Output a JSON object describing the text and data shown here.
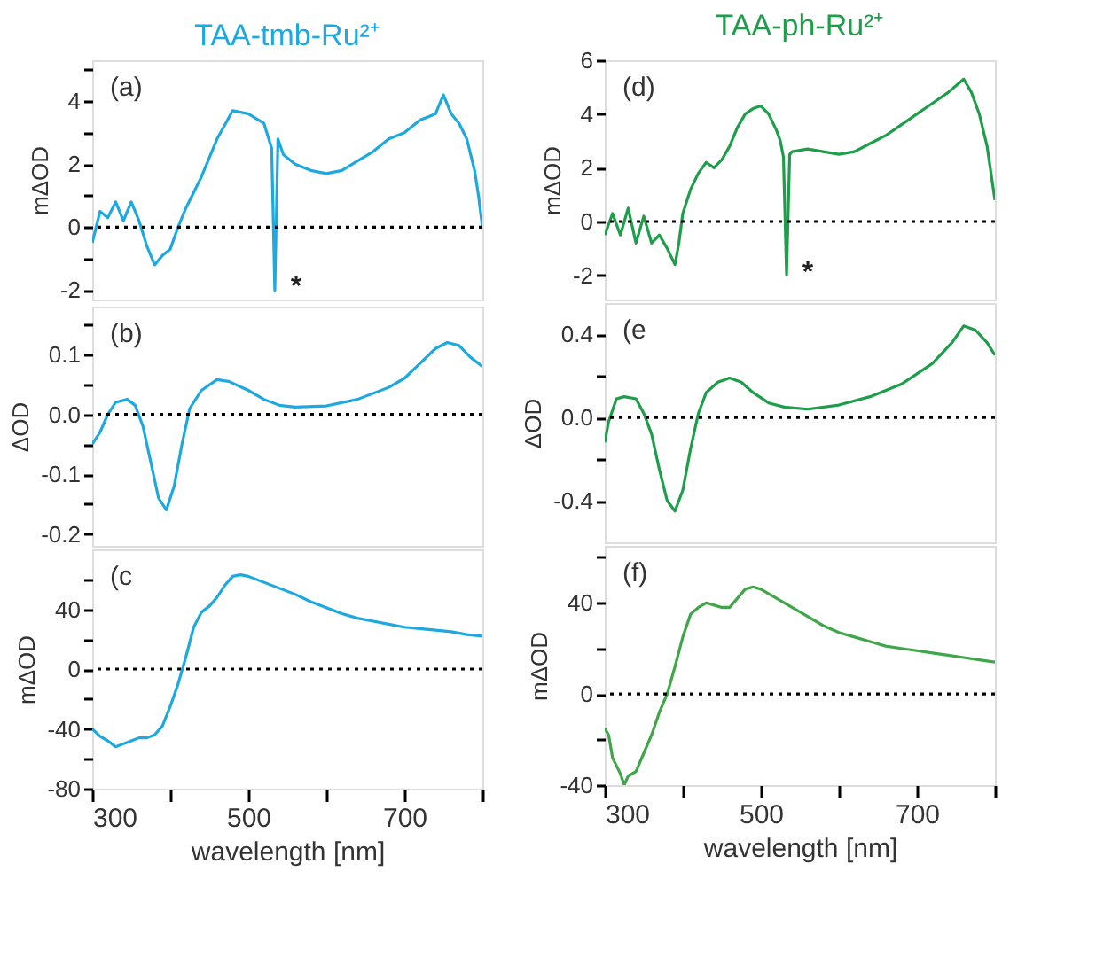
{
  "chart_data": [
    {
      "type": "line",
      "title": "TAA-tmb-Ru²⁺",
      "ylabel": "mΔOD",
      "xlim": [
        300,
        800
      ],
      "ylim": [
        -2.3,
        5.3
      ],
      "yticks": [
        -2,
        {
          "value": -1,
          "label": null
        },
        0,
        {
          "value": 1,
          "label": null
        },
        2,
        {
          "value": 3,
          "label": null
        },
        4,
        {
          "value": 5,
          "label": null
        }
      ],
      "tick_labels": "y",
      "grid": false,
      "x": [
        300,
        310,
        320,
        330,
        340,
        350,
        360,
        370,
        380,
        390,
        400,
        410,
        420,
        440,
        460,
        480,
        500,
        520,
        530,
        534,
        538,
        545,
        560,
        580,
        600,
        620,
        640,
        660,
        680,
        700,
        720,
        740,
        750,
        760,
        770,
        780,
        790,
        795,
        800
      ],
      "series": [
        {
          "color": "#1ea8e0",
          "values": [
            -0.5,
            0.5,
            0.3,
            0.8,
            0.2,
            0.8,
            0.2,
            -0.6,
            -1.2,
            -0.9,
            -0.7,
            0,
            0.6,
            1.6,
            2.8,
            3.7,
            3.6,
            3.3,
            2.5,
            -2.0,
            2.8,
            2.3,
            2.0,
            1.8,
            1.7,
            1.8,
            2.1,
            2.4,
            2.8,
            3.0,
            3.4,
            3.6,
            4.2,
            3.6,
            3.3,
            2.8,
            1.8,
            1.0,
            0
          ]
        }
      ],
      "ref_lines": [
        {
          "axis": "y",
          "value": 0,
          "line_style": "dotted",
          "color": "#000000"
        }
      ],
      "annotations": [
        "(a)",
        {
          "text": "*",
          "x": 534,
          "y": -2
        }
      ]
    },
    {
      "type": "line",
      "ylabel": "ΔOD",
      "xlim": [
        300,
        800
      ],
      "ylim": [
        -0.22,
        0.18
      ],
      "yticks": [
        -0.2,
        {
          "value": -0.15,
          "label": null
        },
        -0.1,
        {
          "value": -0.05,
          "label": null
        },
        {
          "value": 0,
          "label": "0.0"
        },
        {
          "value": 0.05,
          "label": null
        },
        0.1,
        {
          "value": 0.15,
          "label": null
        }
      ],
      "tick_labels": "y",
      "grid": false,
      "x": [
        300,
        310,
        320,
        330,
        345,
        355,
        365,
        375,
        385,
        395,
        405,
        415,
        425,
        440,
        460,
        475,
        500,
        520,
        540,
        560,
        600,
        640,
        680,
        700,
        720,
        740,
        755,
        770,
        785,
        800
      ],
      "series": [
        {
          "color": "#1ea8e0",
          "values": [
            -0.05,
            -0.03,
            0.0,
            0.02,
            0.025,
            0.015,
            -0.02,
            -0.08,
            -0.14,
            -0.16,
            -0.12,
            -0.05,
            0.01,
            0.04,
            0.058,
            0.055,
            0.04,
            0.025,
            0.015,
            0.012,
            0.014,
            0.025,
            0.045,
            0.06,
            0.085,
            0.11,
            0.12,
            0.115,
            0.095,
            0.08
          ]
        }
      ],
      "ref_lines": [
        {
          "axis": "y",
          "value": 0,
          "line_style": "dotted",
          "color": "#000000"
        }
      ],
      "annotations": [
        "(b)"
      ]
    },
    {
      "type": "line",
      "ylabel": "mΔOD",
      "xlabel": "wavelength [nm]",
      "xlim": [
        300,
        800
      ],
      "xticks": [
        300,
        {
          "value": 400,
          "label": null
        },
        500,
        {
          "value": 600,
          "label": null
        },
        700,
        {
          "value": 800,
          "label": null
        }
      ],
      "ylim": [
        -80,
        80
      ],
      "yticks": [
        -80,
        {
          "value": -60,
          "label": null
        },
        -40,
        {
          "value": -20,
          "label": null
        },
        0,
        {
          "value": 20,
          "label": null
        },
        40,
        {
          "value": 60,
          "label": null
        }
      ],
      "grid": false,
      "x": [
        300,
        310,
        320,
        330,
        340,
        350,
        360,
        370,
        380,
        390,
        400,
        410,
        420,
        430,
        440,
        450,
        460,
        470,
        480,
        490,
        500,
        520,
        540,
        560,
        580,
        600,
        620,
        640,
        660,
        680,
        700,
        720,
        740,
        760,
        780,
        800
      ],
      "series": [
        {
          "color": "#1ea8e0",
          "values": [
            -40,
            -45,
            -48,
            -52,
            -50,
            -48,
            -46,
            -46,
            -44,
            -38,
            -25,
            -10,
            8,
            28,
            38,
            42,
            48,
            56,
            62,
            63,
            62,
            58,
            54,
            50,
            45,
            41,
            37,
            34,
            32,
            30,
            28,
            27,
            26,
            25,
            23,
            22
          ]
        }
      ],
      "ref_lines": [
        {
          "axis": "y",
          "value": 0,
          "line_style": "dotted",
          "color": "#000000"
        }
      ],
      "annotations": [
        "(c"
      ]
    },
    {
      "type": "line",
      "title": "TAA-ph-Ru²⁺",
      "ylabel": "mΔOD",
      "xlim": [
        300,
        800
      ],
      "ylim": [
        -2.9,
        6
      ],
      "yticks": [
        -2,
        0,
        2,
        4,
        6
      ],
      "tick_labels": "y",
      "grid": false,
      "x": [
        300,
        310,
        320,
        330,
        340,
        350,
        360,
        370,
        380,
        390,
        395,
        400,
        410,
        420,
        430,
        440,
        450,
        460,
        470,
        480,
        490,
        500,
        510,
        520,
        525,
        529,
        533,
        537,
        540,
        560,
        580,
        600,
        620,
        640,
        660,
        680,
        700,
        720,
        740,
        760,
        770,
        780,
        790,
        800
      ],
      "series": [
        {
          "color": "#1e9e4a",
          "values": [
            -0.5,
            0.3,
            -0.5,
            0.5,
            -0.8,
            0.2,
            -0.8,
            -0.5,
            -1.0,
            -1.6,
            -0.8,
            0.3,
            1.2,
            1.8,
            2.2,
            2.0,
            2.3,
            2.8,
            3.5,
            4.0,
            4.2,
            4.3,
            4.0,
            3.4,
            3.0,
            2.4,
            -2.0,
            2.5,
            2.6,
            2.7,
            2.6,
            2.5,
            2.6,
            2.9,
            3.2,
            3.6,
            4.0,
            4.4,
            4.8,
            5.3,
            4.8,
            4.0,
            2.8,
            0.8
          ]
        }
      ],
      "ref_lines": [
        {
          "axis": "y",
          "value": 0,
          "line_style": "dotted",
          "color": "#000000"
        }
      ],
      "annotations": [
        "(d)",
        {
          "text": "*",
          "x": 533,
          "y": -2
        }
      ]
    },
    {
      "type": "line",
      "ylabel": "ΔOD",
      "xlim": [
        300,
        800
      ],
      "ylim": [
        -0.6,
        0.55
      ],
      "yticks": [
        -0.4,
        {
          "value": -0.2,
          "label": null
        },
        {
          "value": 0,
          "label": "0.0"
        },
        {
          "value": 0.2,
          "label": null
        },
        0.4
      ],
      "tick_labels": "y",
      "grid": false,
      "x": [
        300,
        305,
        315,
        325,
        340,
        350,
        360,
        370,
        380,
        390,
        400,
        410,
        420,
        430,
        445,
        460,
        475,
        490,
        510,
        530,
        560,
        600,
        640,
        680,
        720,
        745,
        760,
        775,
        790,
        800
      ],
      "series": [
        {
          "color": "#1e9e4a",
          "values": [
            -0.12,
            -0.02,
            0.09,
            0.1,
            0.09,
            0.02,
            -0.08,
            -0.25,
            -0.4,
            -0.45,
            -0.35,
            -0.15,
            0.02,
            0.12,
            0.17,
            0.19,
            0.17,
            0.12,
            0.07,
            0.05,
            0.04,
            0.06,
            0.1,
            0.16,
            0.26,
            0.36,
            0.44,
            0.42,
            0.36,
            0.3
          ]
        }
      ],
      "ref_lines": [
        {
          "axis": "y",
          "value": 0,
          "line_style": "dotted",
          "color": "#000000"
        }
      ],
      "annotations": [
        "(e"
      ]
    },
    {
      "type": "line",
      "ylabel": "mΔOD",
      "xlabel": "wavelength [nm]",
      "xlim": [
        300,
        800
      ],
      "xticks": [
        300,
        {
          "value": 400,
          "label": null
        },
        500,
        {
          "value": 600,
          "label": null
        },
        700,
        {
          "value": 800,
          "label": null
        }
      ],
      "ylim": [
        -40,
        65
      ],
      "yticks": [
        -40,
        {
          "value": -20,
          "label": null
        },
        0,
        {
          "value": 20,
          "label": null
        },
        40,
        {
          "value": 60,
          "label": null
        }
      ],
      "grid": false,
      "x": [
        300,
        305,
        310,
        320,
        325,
        330,
        340,
        350,
        360,
        370,
        380,
        390,
        400,
        410,
        420,
        430,
        440,
        450,
        460,
        470,
        480,
        490,
        500,
        520,
        540,
        560,
        580,
        600,
        620,
        640,
        660,
        680,
        700,
        720,
        740,
        760,
        780,
        800
      ],
      "series": [
        {
          "color": "#3fa64a",
          "values": [
            -15,
            -18,
            -28,
            -35,
            -40,
            -36,
            -34,
            -26,
            -18,
            -8,
            0,
            12,
            25,
            35,
            38,
            40,
            39,
            38,
            38,
            42,
            46,
            47,
            46,
            42,
            38,
            34,
            30,
            27,
            25,
            23,
            21,
            20,
            19,
            18,
            17,
            16,
            15,
            14
          ]
        }
      ],
      "ref_lines": [
        {
          "axis": "y",
          "value": 0,
          "line_style": "dotted",
          "color": "#000000"
        }
      ],
      "annotations": [
        "(f)"
      ]
    }
  ]
}
